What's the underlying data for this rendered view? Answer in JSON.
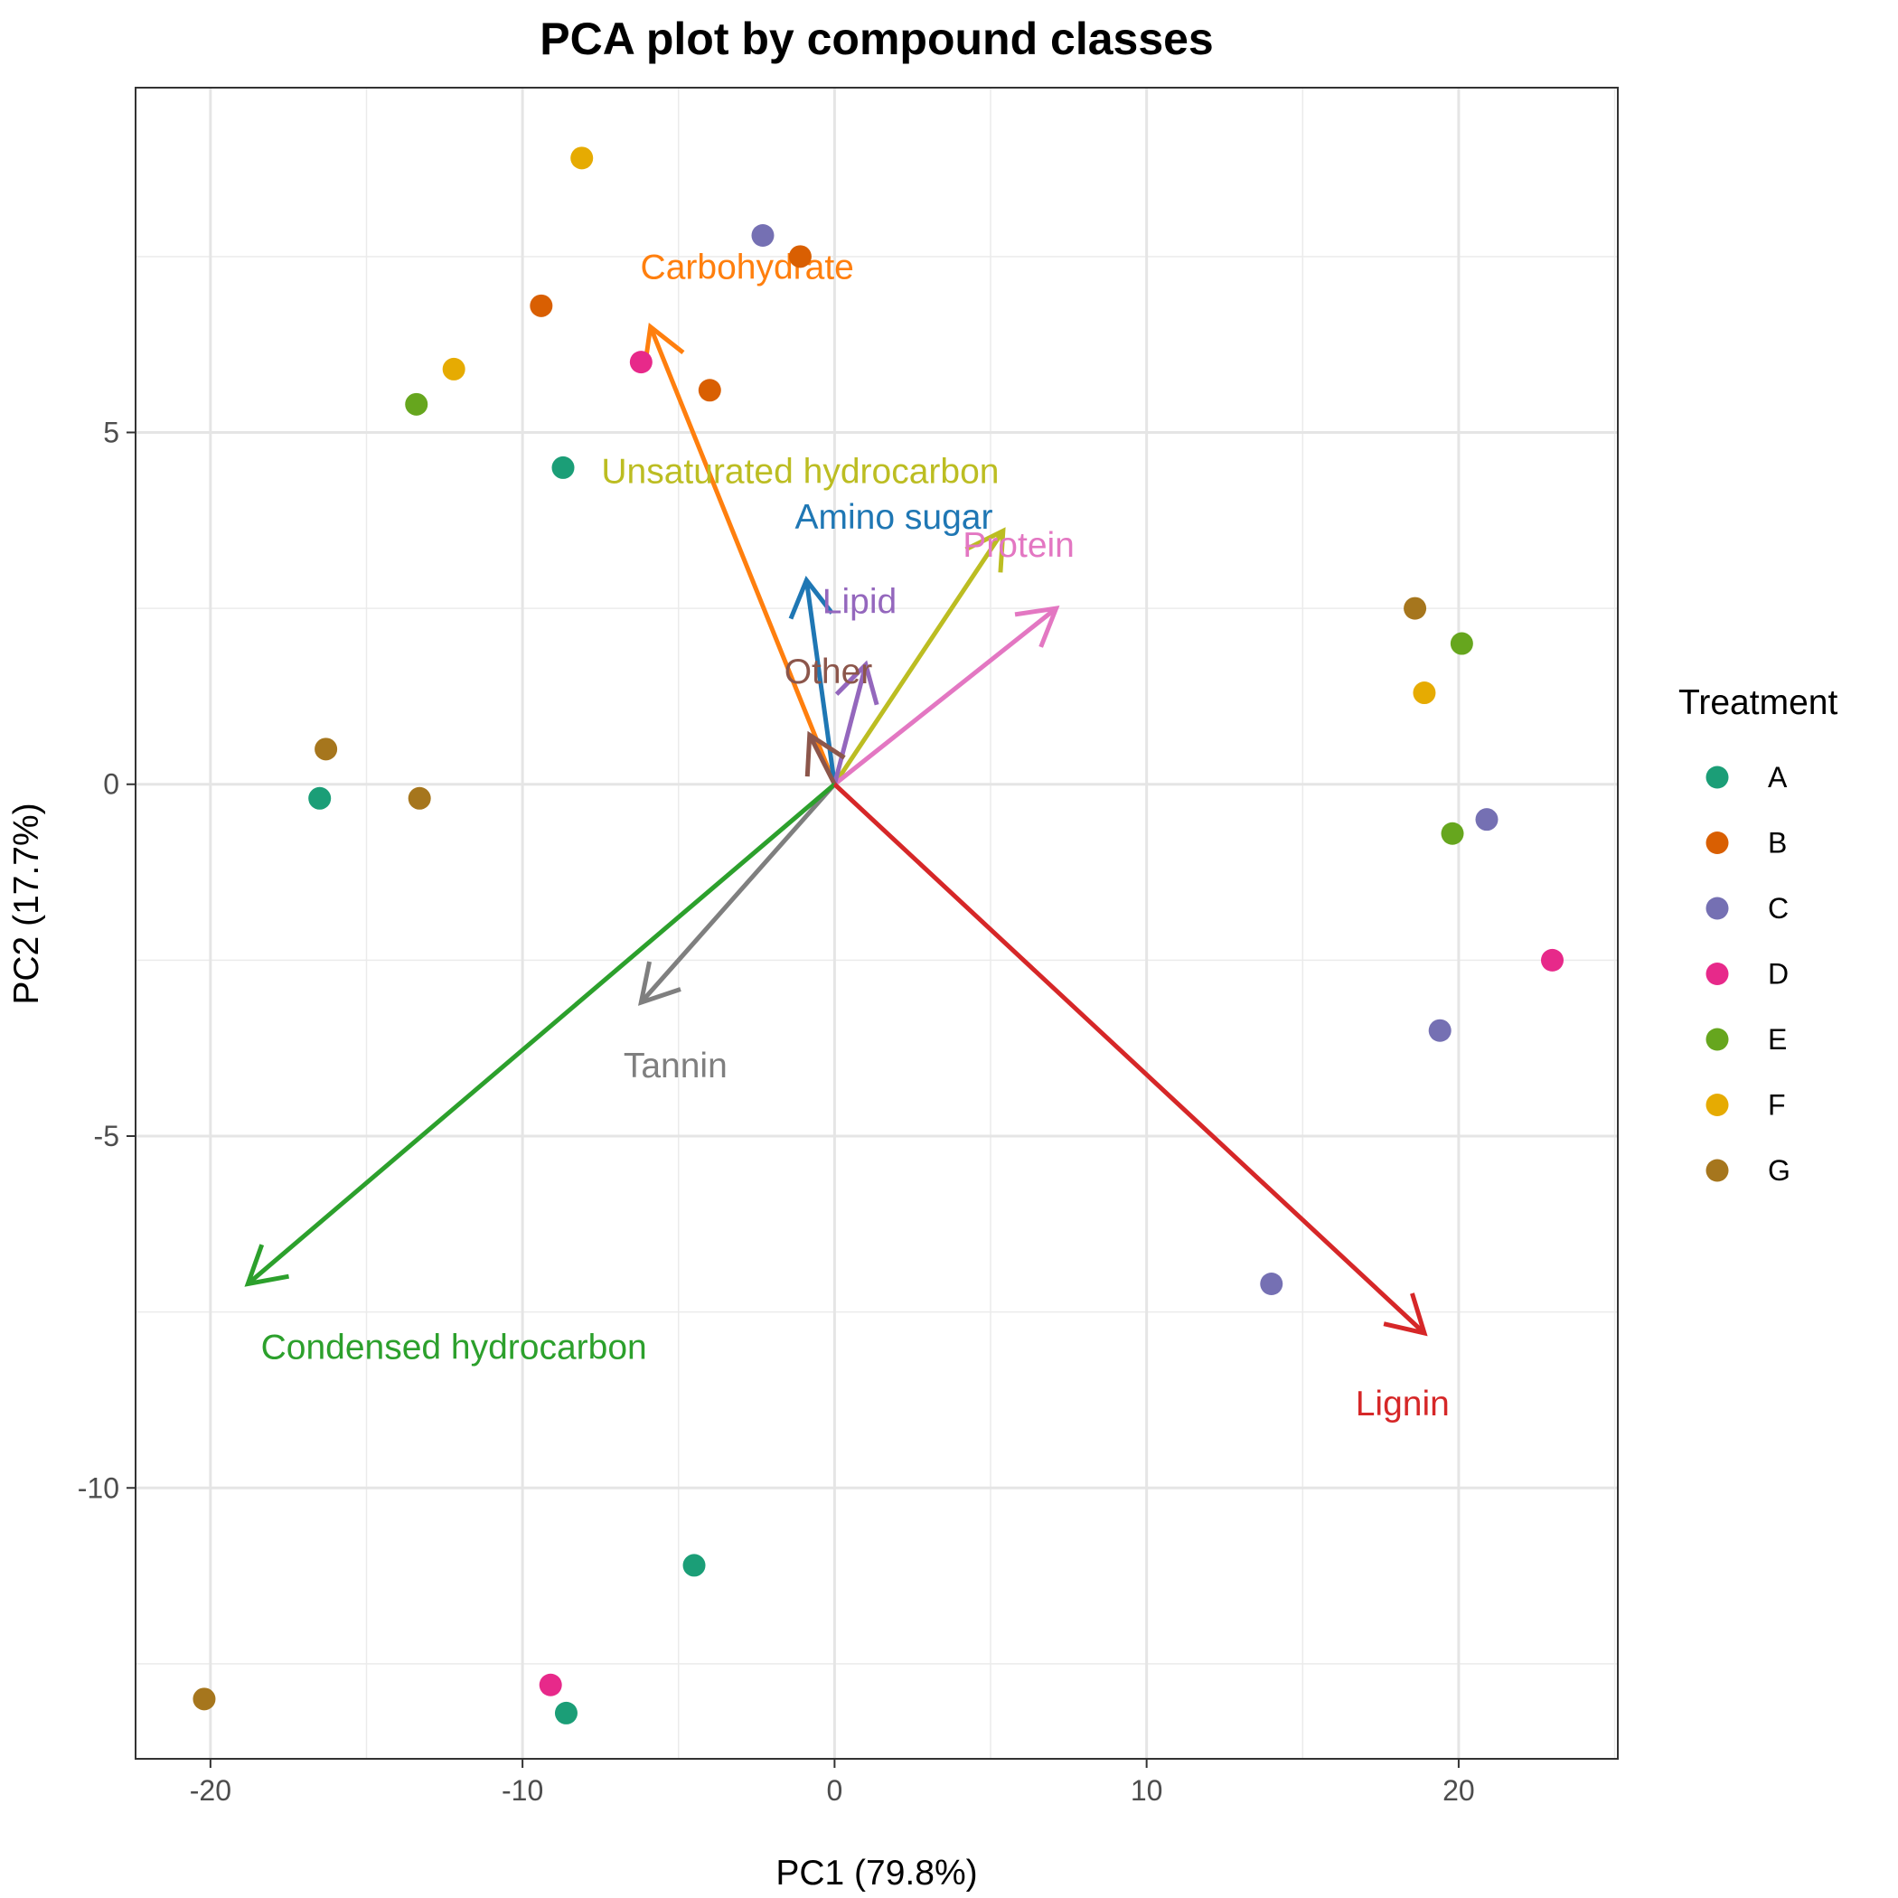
{
  "chart_data": {
    "type": "scatter",
    "title": "PCA plot by compound classes",
    "xlabel": "PC1 (79.8%)",
    "ylabel": "PC2 (17.7%)",
    "xlim": [
      -22.4,
      25.1
    ],
    "ylim": [
      -13.85,
      9.9
    ],
    "x_ticks": [
      -20,
      -10,
      0,
      10,
      20
    ],
    "y_ticks": [
      -10,
      -5,
      0,
      5
    ],
    "x_tick_labels": [
      "-20",
      "-10",
      "0",
      "10",
      "20"
    ],
    "y_tick_labels": [
      "-10",
      "-5",
      "0",
      "5"
    ],
    "grid": true,
    "legend": {
      "title": "Treatment",
      "position": "right",
      "items": [
        {
          "name": "A",
          "color": "#1b9e77"
        },
        {
          "name": "B",
          "color": "#d95f02"
        },
        {
          "name": "C",
          "color": "#7570b3"
        },
        {
          "name": "D",
          "color": "#e7298a"
        },
        {
          "name": "E",
          "color": "#66a61e"
        },
        {
          "name": "F",
          "color": "#e6ab02"
        },
        {
          "name": "G",
          "color": "#a6761d"
        }
      ]
    },
    "series": [
      {
        "name": "A",
        "color": "#1b9e77",
        "points": [
          [
            -8.7,
            4.5
          ],
          [
            -16.5,
            -0.2
          ],
          [
            -4.5,
            -11.1
          ],
          [
            -8.6,
            -13.2
          ]
        ]
      },
      {
        "name": "B",
        "color": "#d95f02",
        "points": [
          [
            -9.4,
            6.8
          ],
          [
            -1.1,
            7.5
          ],
          [
            -4.0,
            5.6
          ]
        ]
      },
      {
        "name": "C",
        "color": "#7570b3",
        "points": [
          [
            -2.3,
            7.8
          ],
          [
            20.9,
            -0.5
          ],
          [
            19.4,
            -3.5
          ],
          [
            14.0,
            -7.1
          ]
        ]
      },
      {
        "name": "D",
        "color": "#e7298a",
        "points": [
          [
            -6.2,
            6.0
          ],
          [
            23.0,
            -2.5
          ],
          [
            -9.1,
            -12.8
          ]
        ]
      },
      {
        "name": "E",
        "color": "#66a61e",
        "points": [
          [
            -13.4,
            5.4
          ],
          [
            20.1,
            2.0
          ],
          [
            19.8,
            -0.7
          ]
        ]
      },
      {
        "name": "F",
        "color": "#e6ab02",
        "points": [
          [
            -8.1,
            8.9
          ],
          [
            -12.2,
            5.9
          ],
          [
            18.9,
            1.3
          ]
        ]
      },
      {
        "name": "G",
        "color": "#a6761d",
        "points": [
          [
            -16.3,
            0.5
          ],
          [
            -13.3,
            -0.2
          ],
          [
            18.6,
            2.5
          ],
          [
            -20.2,
            -13.0
          ]
        ]
      }
    ],
    "loadings": [
      {
        "name": "Carbohydrate",
        "color": "#ff7f0e",
        "x": -5.9,
        "y": 6.5,
        "label_x": -2.8,
        "label_y": 7.35
      },
      {
        "name": "Unsaturated hydrocarbon",
        "color": "#bcbd22",
        "x": 5.4,
        "y": 3.6,
        "label_x": -1.1,
        "label_y": 4.45
      },
      {
        "name": "Amino sugar",
        "color": "#1f77b4",
        "x": -0.9,
        "y": 2.9,
        "label_x": 1.9,
        "label_y": 3.8
      },
      {
        "name": "Protein",
        "color": "#e377c2",
        "x": 7.1,
        "y": 2.5,
        "label_x": 5.9,
        "label_y": 3.4
      },
      {
        "name": "Lipid",
        "color": "#9467bd",
        "x": 1.0,
        "y": 1.7,
        "label_x": 0.8,
        "label_y": 2.6
      },
      {
        "name": "Other",
        "color": "#8c564b",
        "x": -0.8,
        "y": 0.7,
        "label_x": -0.2,
        "label_y": 1.6
      },
      {
        "name": "Tannin",
        "color": "#7f7f7f",
        "x": -6.2,
        "y": -3.1,
        "label_x": -5.1,
        "label_y": -4.0
      },
      {
        "name": "Condensed hydrocarbon",
        "color": "#2ca02c",
        "x": -18.8,
        "y": -7.1,
        "label_x": -12.2,
        "label_y": -8.0
      },
      {
        "name": "Lignin",
        "color": "#d62728",
        "x": 18.9,
        "y": -7.8,
        "label_x": 18.2,
        "label_y": -8.8
      }
    ]
  }
}
